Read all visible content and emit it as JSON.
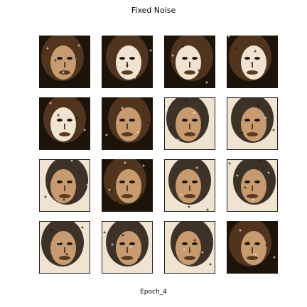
{
  "figure": {
    "title": "Fixed Noise",
    "caption": "Epoch_4"
  },
  "grid": {
    "rows": 4,
    "cols": 4,
    "tiles": [
      {
        "variant": "dark"
      },
      {
        "variant": "bright"
      },
      {
        "variant": "bright"
      },
      {
        "variant": "bright"
      },
      {
        "variant": "bright"
      },
      {
        "variant": "dark"
      },
      {
        "variant": "framed"
      },
      {
        "variant": "framed"
      },
      {
        "variant": "framed"
      },
      {
        "variant": "dark"
      },
      {
        "variant": "framed"
      },
      {
        "variant": "framed"
      },
      {
        "variant": "framed"
      },
      {
        "variant": "framed"
      },
      {
        "variant": "framed"
      },
      {
        "variant": "dark"
      }
    ]
  },
  "colors": {
    "background": "#ffffff",
    "dark": "#1c130b",
    "brown": "#5a3b22",
    "skin": "#c79a6f",
    "light": "#f1e3d2",
    "frame": "#222222"
  }
}
